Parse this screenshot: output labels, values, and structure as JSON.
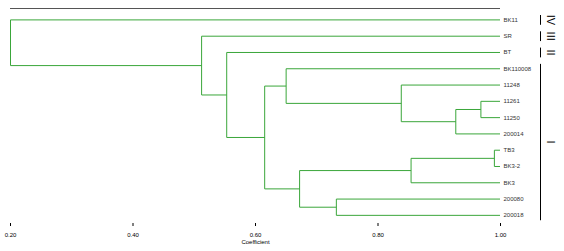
{
  "chart_data": {
    "type": "dendrogram",
    "xlabel": "Coefficient",
    "xlim": [
      0.2,
      1.0
    ],
    "xticks": [
      {
        "value": 0.2,
        "label": "0.20"
      },
      {
        "value": 0.4,
        "label": "0.40"
      },
      {
        "value": 0.6,
        "label": "0.60"
      },
      {
        "value": 0.8,
        "label": "0.80"
      },
      {
        "value": 1.0,
        "label": "1.00"
      }
    ],
    "color": "#3aa63a",
    "tree": {
      "height": 0.2,
      "children": [
        {
          "height": 0.512,
          "children": [
            {
              "height": 0.553,
              "children": [
                {
                  "height": 0.615,
                  "children": [
                    {
                      "height": 0.672,
                      "children": [
                        {
                          "height": 0.732,
                          "children": [
                            {
                              "name": "200018",
                              "height": 1.0
                            },
                            {
                              "name": "200080",
                              "height": 1.0
                            }
                          ]
                        },
                        {
                          "height": 0.854,
                          "children": [
                            {
                              "name": "BK3",
                              "height": 1.0
                            },
                            {
                              "height": 0.99,
                              "children": [
                                {
                                  "name": "BK3-2",
                                  "height": 1.0
                                },
                                {
                                  "name": "TB3",
                                  "height": 1.0
                                }
                              ]
                            }
                          ]
                        }
                      ]
                    },
                    {
                      "height": 0.65,
                      "children": [
                        {
                          "height": 0.838,
                          "children": [
                            {
                              "height": 0.927,
                              "children": [
                                {
                                  "name": "200014",
                                  "height": 1.0
                                },
                                {
                                  "height": 0.968,
                                  "children": [
                                    {
                                      "name": "11250",
                                      "height": 1.0
                                    },
                                    {
                                      "name": "11261",
                                      "height": 1.0
                                    }
                                  ]
                                }
                              ]
                            },
                            {
                              "name": "11248",
                              "height": 1.0
                            }
                          ]
                        },
                        {
                          "name": "BK110008",
                          "height": 1.0
                        }
                      ]
                    }
                  ]
                },
                {
                  "name": "BT",
                  "height": 1.0
                }
              ]
            },
            {
              "name": "SR",
              "height": 1.0
            }
          ]
        },
        {
          "name": "BK11",
          "height": 1.0
        }
      ]
    },
    "groups": [
      {
        "label": "I",
        "members": [
          "200018",
          "200080",
          "BK3",
          "BK3-2",
          "TB3",
          "200014",
          "11250",
          "11261",
          "11248",
          "BK110008"
        ]
      },
      {
        "label": "II",
        "members": [
          "BT"
        ]
      },
      {
        "label": "III",
        "members": [
          "SR"
        ]
      },
      {
        "label": "IV",
        "members": [
          "BK11"
        ]
      }
    ]
  }
}
